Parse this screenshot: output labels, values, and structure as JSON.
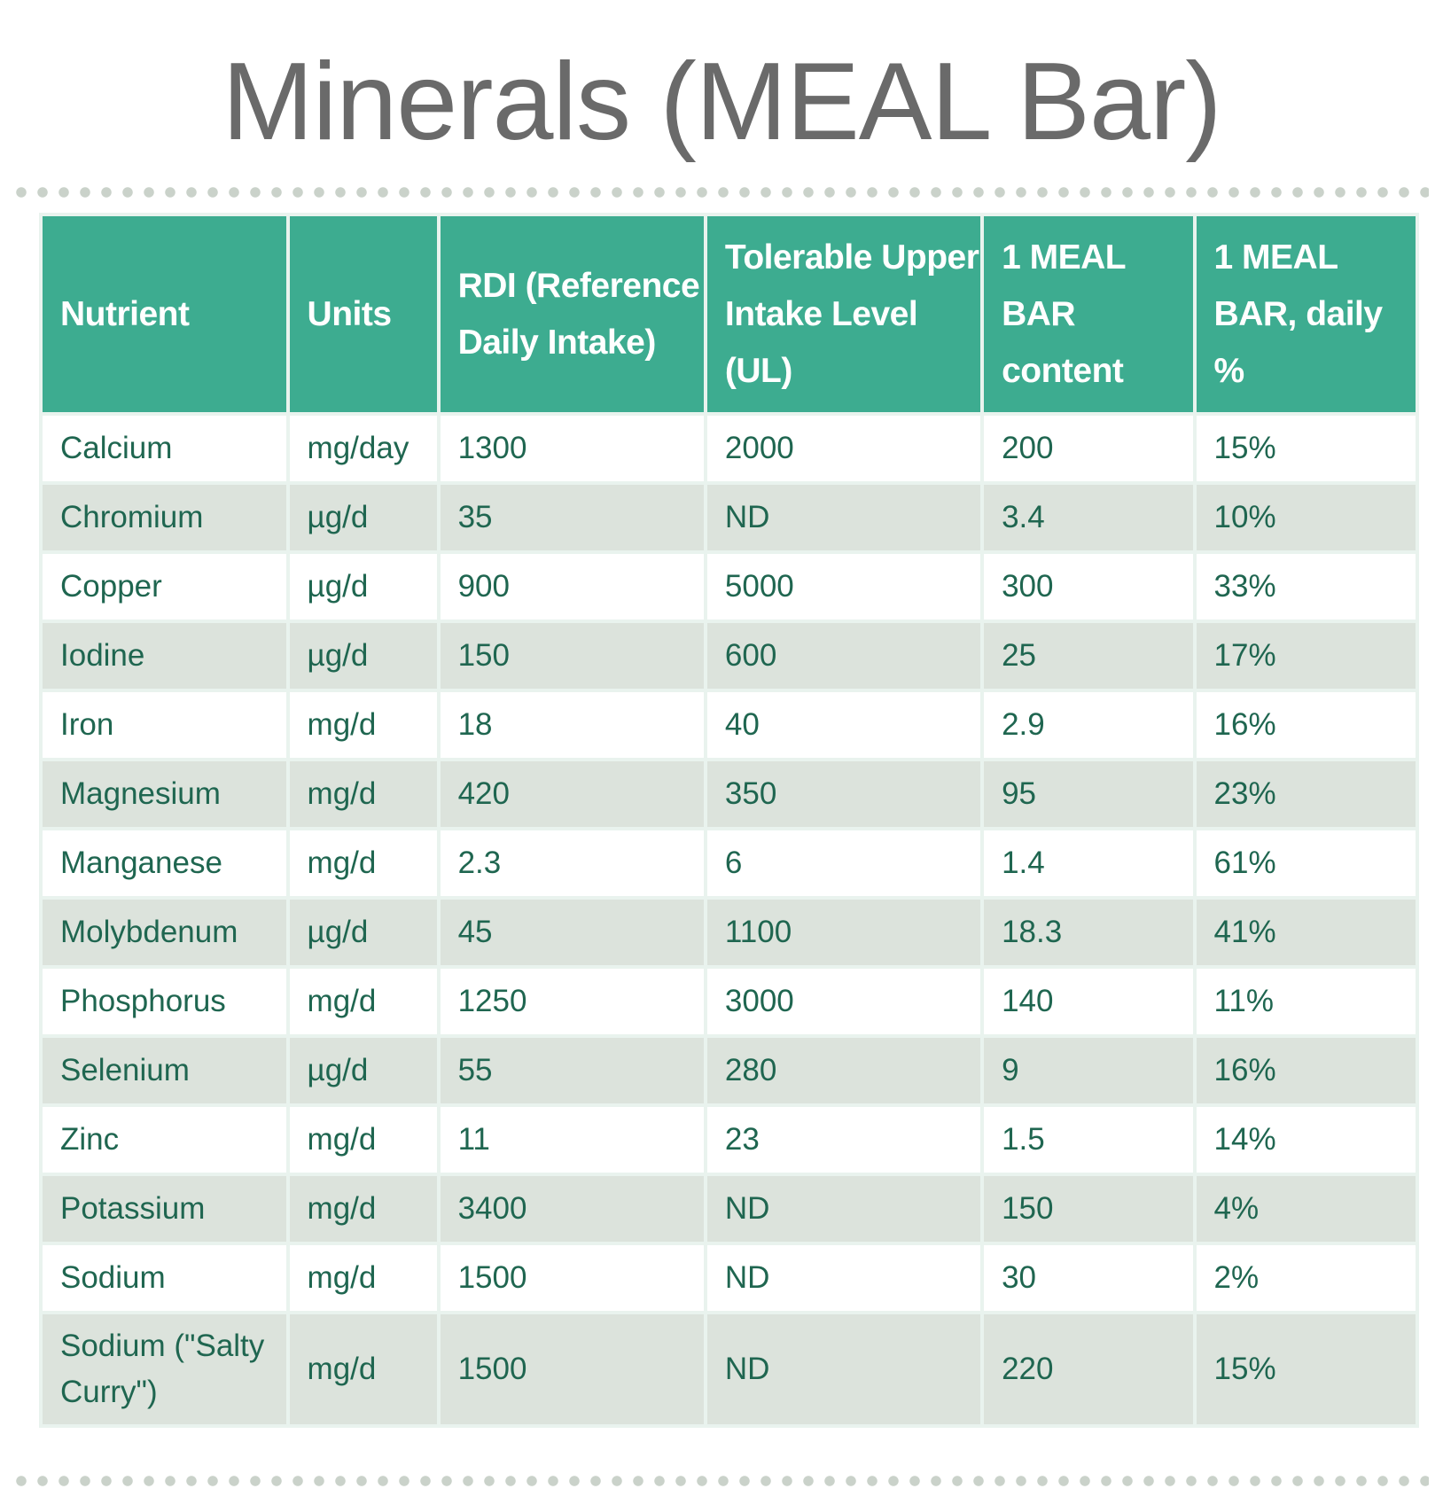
{
  "title": "Minerals (MEAL Bar)",
  "colors": {
    "header_bg": "#3dac90",
    "header_text": "#ffffff",
    "body_text": "#1f6650",
    "alt_row": "#dce3dc",
    "title": "#6a6a6a"
  },
  "table": {
    "headers": [
      "Nutrient",
      "Units",
      "RDI (Reference Daily Intake)",
      "Tolerable Upper Intake Level (UL)",
      "1 MEAL BAR content",
      "1 MEAL BAR, daily %"
    ],
    "rows": [
      [
        "Calcium",
        "mg/day",
        "1300",
        "2000",
        "200",
        "15%"
      ],
      [
        "Chromium",
        "µg/d",
        "35",
        "ND",
        "3.4",
        "10%"
      ],
      [
        "Copper",
        "µg/d",
        "900",
        "5000",
        "300",
        "33%"
      ],
      [
        "Iodine",
        "µg/d",
        "150",
        "600",
        "25",
        "17%"
      ],
      [
        "Iron",
        "mg/d",
        "18",
        "40",
        "2.9",
        "16%"
      ],
      [
        "Magnesium",
        "mg/d",
        "420",
        "350",
        "95",
        "23%"
      ],
      [
        "Manganese",
        "mg/d",
        "2.3",
        "6",
        "1.4",
        "61%"
      ],
      [
        "Molybdenum",
        "µg/d",
        "45",
        "1100",
        "18.3",
        "41%"
      ],
      [
        "Phosphorus",
        "mg/d",
        "1250",
        "3000",
        "140",
        "11%"
      ],
      [
        "Selenium",
        "µg/d",
        "55",
        "280",
        "9",
        "16%"
      ],
      [
        "Zinc",
        "mg/d",
        "11",
        "23",
        "1.5",
        "14%"
      ],
      [
        "Potassium",
        "mg/d",
        "3400",
        "ND",
        "150",
        "4%"
      ],
      [
        "Sodium",
        "mg/d",
        "1500",
        "ND",
        "30",
        "2%"
      ],
      [
        "Sodium (\"Salty Curry\")",
        "mg/d",
        "1500",
        "ND",
        "220",
        "15%"
      ]
    ]
  }
}
